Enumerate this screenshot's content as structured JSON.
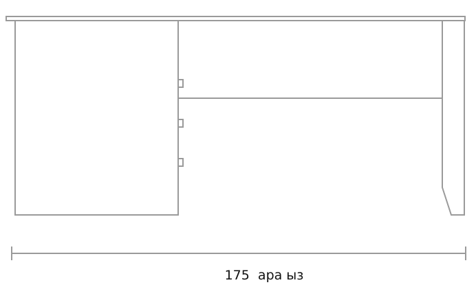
{
  "dimension": {
    "value": "175",
    "unit": "ара ыз"
  },
  "colors": {
    "line": "#9a9a9a",
    "text": "#111111"
  }
}
